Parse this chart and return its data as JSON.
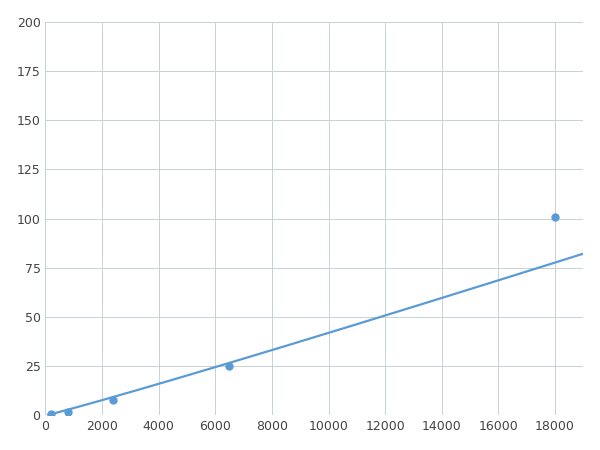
{
  "x_points": [
    200,
    800,
    2400,
    6500,
    18000
  ],
  "y_points": [
    1,
    2,
    8,
    25,
    101
  ],
  "line_color": "#5b9bd5",
  "marker_color": "#5b9bd5",
  "xlim": [
    0,
    19000
  ],
  "ylim": [
    0,
    200
  ],
  "xticks": [
    0,
    2000,
    4000,
    6000,
    8000,
    10000,
    12000,
    14000,
    16000,
    18000
  ],
  "yticks": [
    0,
    25,
    50,
    75,
    100,
    125,
    150,
    175,
    200
  ],
  "grid_color": "#c8d0d8",
  "background_color": "#ffffff",
  "marker_size": 5,
  "line_width": 1.6
}
